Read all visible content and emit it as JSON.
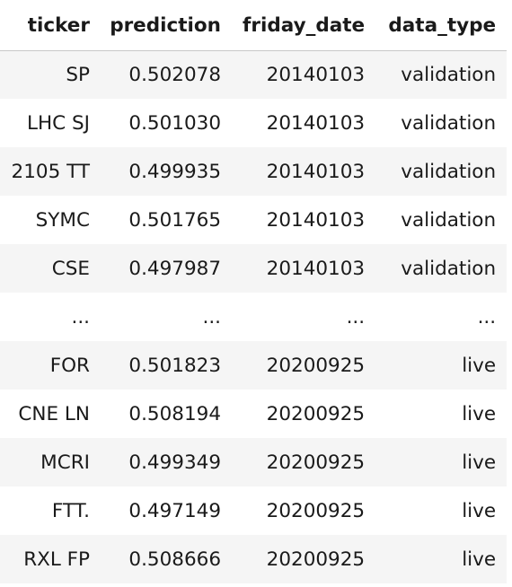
{
  "table": {
    "columns": [
      "ticker",
      "prediction",
      "friday_date",
      "data_type"
    ],
    "rows": [
      [
        "SP",
        "0.502078",
        "20140103",
        "validation"
      ],
      [
        "LHC SJ",
        "0.501030",
        "20140103",
        "validation"
      ],
      [
        "2105 TT",
        "0.499935",
        "20140103",
        "validation"
      ],
      [
        "SYMC",
        "0.501765",
        "20140103",
        "validation"
      ],
      [
        "CSE",
        "0.497987",
        "20140103",
        "validation"
      ],
      [
        "...",
        "...",
        "...",
        "..."
      ],
      [
        "FOR",
        "0.501823",
        "20200925",
        "live"
      ],
      [
        "CNE LN",
        "0.508194",
        "20200925",
        "live"
      ],
      [
        "MCRI",
        "0.499349",
        "20200925",
        "live"
      ],
      [
        "FTT.",
        "0.497149",
        "20200925",
        "live"
      ],
      [
        "RXL FP",
        "0.508666",
        "20200925",
        "live"
      ]
    ]
  }
}
